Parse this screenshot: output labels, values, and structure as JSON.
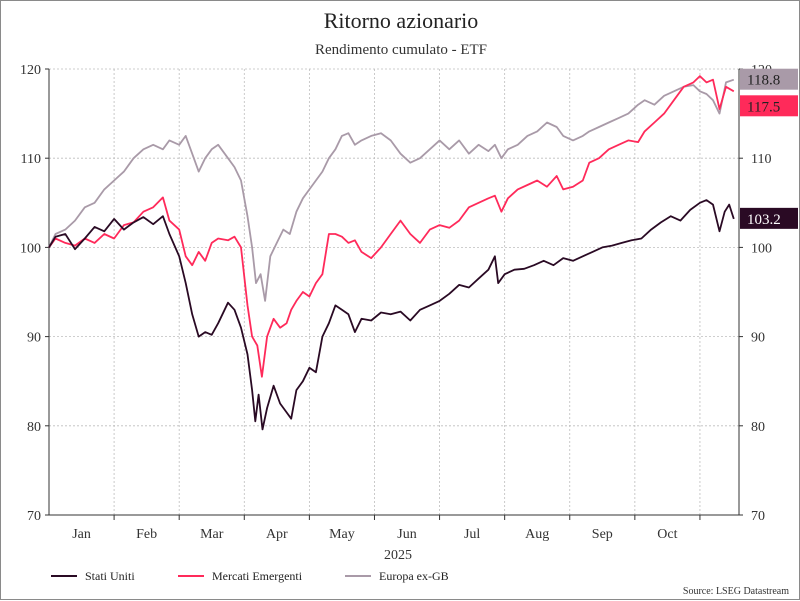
{
  "colors": {
    "stati_uniti": "#2a0a24",
    "mercati_emergenti": "#ff2a5a",
    "europa_ex_gb": "#a99aa8",
    "grid": "#bdbdbd",
    "text": "#222222"
  },
  "chart_data": {
    "type": "line",
    "title": "Ritorno azionario",
    "subtitle": "Rendimento cumulato - ETF",
    "xlabel": "2025",
    "ylabel": "",
    "ylim": [
      70,
      120
    ],
    "yticks": [
      70,
      80,
      90,
      100,
      110,
      120
    ],
    "xlim": [
      0,
      10.6
    ],
    "x_tick_labels": [
      "Jan",
      "Feb",
      "Mar",
      "Apr",
      "May",
      "Jun",
      "Jul",
      "Aug",
      "Sep",
      "Oct"
    ],
    "x_tick_positions": [
      0.5,
      1.5,
      2.5,
      3.5,
      4.5,
      5.5,
      6.5,
      7.5,
      8.5,
      9.5
    ],
    "grid": true,
    "legend_position": "bottom",
    "source": "Source: LSEG Datastream",
    "series": [
      {
        "name": "Stati Uniti",
        "color_key": "stati_uniti",
        "end_label": "103.2",
        "points": [
          [
            0.0,
            100.0
          ],
          [
            0.1,
            101.2
          ],
          [
            0.25,
            101.5
          ],
          [
            0.4,
            99.8
          ],
          [
            0.55,
            101.0
          ],
          [
            0.7,
            102.3
          ],
          [
            0.85,
            101.8
          ],
          [
            1.0,
            103.2
          ],
          [
            1.15,
            102.0
          ],
          [
            1.3,
            102.8
          ],
          [
            1.45,
            103.4
          ],
          [
            1.6,
            102.6
          ],
          [
            1.75,
            103.5
          ],
          [
            1.85,
            101.5
          ],
          [
            2.0,
            99.0
          ],
          [
            2.1,
            96.0
          ],
          [
            2.2,
            92.5
          ],
          [
            2.3,
            90.0
          ],
          [
            2.4,
            90.5
          ],
          [
            2.5,
            90.2
          ],
          [
            2.6,
            91.5
          ],
          [
            2.75,
            93.8
          ],
          [
            2.85,
            93.0
          ],
          [
            2.95,
            91.0
          ],
          [
            3.05,
            88.0
          ],
          [
            3.12,
            84.0
          ],
          [
            3.17,
            80.5
          ],
          [
            3.22,
            83.5
          ],
          [
            3.28,
            79.6
          ],
          [
            3.35,
            82.0
          ],
          [
            3.45,
            84.5
          ],
          [
            3.55,
            82.5
          ],
          [
            3.65,
            81.5
          ],
          [
            3.72,
            80.8
          ],
          [
            3.8,
            84.0
          ],
          [
            3.9,
            85.0
          ],
          [
            4.0,
            86.5
          ],
          [
            4.1,
            86.0
          ],
          [
            4.2,
            90.0
          ],
          [
            4.3,
            91.5
          ],
          [
            4.4,
            93.5
          ],
          [
            4.5,
            93.0
          ],
          [
            4.6,
            92.5
          ],
          [
            4.7,
            90.5
          ],
          [
            4.8,
            92.0
          ],
          [
            4.95,
            91.8
          ],
          [
            5.1,
            92.7
          ],
          [
            5.25,
            92.5
          ],
          [
            5.4,
            92.8
          ],
          [
            5.55,
            91.8
          ],
          [
            5.7,
            93.0
          ],
          [
            5.85,
            93.5
          ],
          [
            6.0,
            94.0
          ],
          [
            6.15,
            94.8
          ],
          [
            6.3,
            95.8
          ],
          [
            6.45,
            95.5
          ],
          [
            6.6,
            96.5
          ],
          [
            6.75,
            97.5
          ],
          [
            6.85,
            99.0
          ],
          [
            6.9,
            96.0
          ],
          [
            7.0,
            97.0
          ],
          [
            7.15,
            97.5
          ],
          [
            7.3,
            97.6
          ],
          [
            7.45,
            98.0
          ],
          [
            7.6,
            98.5
          ],
          [
            7.75,
            98.0
          ],
          [
            7.9,
            98.8
          ],
          [
            8.05,
            98.5
          ],
          [
            8.2,
            99.0
          ],
          [
            8.35,
            99.5
          ],
          [
            8.5,
            100.0
          ],
          [
            8.65,
            100.2
          ],
          [
            8.8,
            100.5
          ],
          [
            8.95,
            100.8
          ],
          [
            9.1,
            101.0
          ],
          [
            9.25,
            102.0
          ],
          [
            9.4,
            102.8
          ],
          [
            9.55,
            103.5
          ],
          [
            9.7,
            103.0
          ],
          [
            9.85,
            104.2
          ],
          [
            10.0,
            105.0
          ],
          [
            10.1,
            105.3
          ],
          [
            10.2,
            104.8
          ],
          [
            10.3,
            101.8
          ],
          [
            10.38,
            104.0
          ],
          [
            10.45,
            104.8
          ],
          [
            10.52,
            103.2
          ]
        ]
      },
      {
        "name": "Mercati Emergenti",
        "color_key": "mercati_emergenti",
        "end_label": "117.5",
        "points": [
          [
            0.0,
            100.0
          ],
          [
            0.1,
            101.0
          ],
          [
            0.25,
            100.5
          ],
          [
            0.4,
            100.2
          ],
          [
            0.55,
            101.0
          ],
          [
            0.7,
            100.5
          ],
          [
            0.85,
            101.5
          ],
          [
            1.0,
            101.0
          ],
          [
            1.15,
            102.5
          ],
          [
            1.3,
            102.8
          ],
          [
            1.45,
            104.0
          ],
          [
            1.6,
            104.5
          ],
          [
            1.75,
            105.6
          ],
          [
            1.85,
            103.0
          ],
          [
            2.0,
            102.0
          ],
          [
            2.1,
            99.0
          ],
          [
            2.2,
            98.0
          ],
          [
            2.3,
            99.5
          ],
          [
            2.4,
            98.5
          ],
          [
            2.5,
            100.5
          ],
          [
            2.6,
            101.0
          ],
          [
            2.75,
            100.8
          ],
          [
            2.85,
            101.2
          ],
          [
            2.95,
            100.0
          ],
          [
            3.05,
            93.5
          ],
          [
            3.12,
            90.0
          ],
          [
            3.2,
            89.0
          ],
          [
            3.27,
            85.5
          ],
          [
            3.35,
            90.0
          ],
          [
            3.45,
            92.0
          ],
          [
            3.55,
            91.0
          ],
          [
            3.65,
            91.5
          ],
          [
            3.72,
            93.0
          ],
          [
            3.8,
            94.0
          ],
          [
            3.9,
            95.0
          ],
          [
            4.0,
            94.5
          ],
          [
            4.1,
            96.0
          ],
          [
            4.2,
            97.0
          ],
          [
            4.3,
            101.5
          ],
          [
            4.4,
            101.5
          ],
          [
            4.5,
            101.2
          ],
          [
            4.6,
            100.5
          ],
          [
            4.7,
            100.8
          ],
          [
            4.8,
            99.5
          ],
          [
            4.95,
            98.8
          ],
          [
            5.1,
            100.0
          ],
          [
            5.25,
            101.5
          ],
          [
            5.4,
            103.0
          ],
          [
            5.55,
            101.5
          ],
          [
            5.7,
            100.5
          ],
          [
            5.85,
            102.0
          ],
          [
            6.0,
            102.5
          ],
          [
            6.15,
            102.2
          ],
          [
            6.3,
            103.0
          ],
          [
            6.45,
            104.5
          ],
          [
            6.6,
            105.0
          ],
          [
            6.75,
            105.5
          ],
          [
            6.85,
            105.8
          ],
          [
            6.95,
            104.0
          ],
          [
            7.05,
            105.5
          ],
          [
            7.2,
            106.5
          ],
          [
            7.35,
            107.0
          ],
          [
            7.5,
            107.5
          ],
          [
            7.65,
            106.8
          ],
          [
            7.8,
            108.0
          ],
          [
            7.9,
            106.5
          ],
          [
            8.05,
            106.8
          ],
          [
            8.2,
            107.5
          ],
          [
            8.3,
            109.5
          ],
          [
            8.45,
            110.0
          ],
          [
            8.6,
            111.0
          ],
          [
            8.75,
            111.5
          ],
          [
            8.9,
            112.0
          ],
          [
            9.05,
            111.8
          ],
          [
            9.15,
            113.0
          ],
          [
            9.3,
            114.0
          ],
          [
            9.45,
            115.0
          ],
          [
            9.6,
            116.5
          ],
          [
            9.75,
            118.0
          ],
          [
            9.9,
            118.5
          ],
          [
            10.0,
            119.2
          ],
          [
            10.1,
            118.5
          ],
          [
            10.2,
            118.8
          ],
          [
            10.3,
            115.5
          ],
          [
            10.4,
            118.0
          ],
          [
            10.52,
            117.5
          ]
        ]
      },
      {
        "name": "Europa ex-GB",
        "color_key": "europa_ex_gb",
        "end_label": "118.8",
        "points": [
          [
            0.0,
            100.0
          ],
          [
            0.1,
            101.5
          ],
          [
            0.25,
            102.0
          ],
          [
            0.4,
            103.0
          ],
          [
            0.55,
            104.5
          ],
          [
            0.7,
            105.0
          ],
          [
            0.85,
            106.5
          ],
          [
            1.0,
            107.5
          ],
          [
            1.15,
            108.5
          ],
          [
            1.3,
            110.0
          ],
          [
            1.45,
            111.0
          ],
          [
            1.6,
            111.5
          ],
          [
            1.75,
            111.0
          ],
          [
            1.85,
            112.0
          ],
          [
            2.0,
            111.5
          ],
          [
            2.1,
            112.5
          ],
          [
            2.2,
            110.5
          ],
          [
            2.3,
            108.5
          ],
          [
            2.4,
            110.0
          ],
          [
            2.5,
            111.0
          ],
          [
            2.6,
            111.5
          ],
          [
            2.75,
            110.0
          ],
          [
            2.85,
            109.0
          ],
          [
            2.95,
            107.5
          ],
          [
            3.05,
            103.5
          ],
          [
            3.12,
            100.0
          ],
          [
            3.18,
            96.0
          ],
          [
            3.25,
            97.0
          ],
          [
            3.32,
            94.0
          ],
          [
            3.4,
            99.0
          ],
          [
            3.5,
            100.5
          ],
          [
            3.6,
            102.0
          ],
          [
            3.7,
            101.5
          ],
          [
            3.8,
            104.0
          ],
          [
            3.9,
            105.5
          ],
          [
            4.0,
            106.5
          ],
          [
            4.1,
            107.5
          ],
          [
            4.2,
            108.5
          ],
          [
            4.3,
            110.0
          ],
          [
            4.4,
            111.0
          ],
          [
            4.5,
            112.5
          ],
          [
            4.6,
            112.8
          ],
          [
            4.7,
            111.5
          ],
          [
            4.8,
            112.0
          ],
          [
            4.95,
            112.5
          ],
          [
            5.1,
            112.8
          ],
          [
            5.25,
            112.0
          ],
          [
            5.4,
            110.5
          ],
          [
            5.55,
            109.5
          ],
          [
            5.7,
            110.0
          ],
          [
            5.85,
            111.0
          ],
          [
            6.0,
            112.0
          ],
          [
            6.15,
            111.0
          ],
          [
            6.3,
            112.0
          ],
          [
            6.45,
            110.5
          ],
          [
            6.6,
            111.5
          ],
          [
            6.75,
            110.8
          ],
          [
            6.85,
            111.5
          ],
          [
            6.95,
            110.0
          ],
          [
            7.05,
            111.0
          ],
          [
            7.2,
            111.5
          ],
          [
            7.35,
            112.5
          ],
          [
            7.5,
            113.0
          ],
          [
            7.65,
            114.0
          ],
          [
            7.8,
            113.5
          ],
          [
            7.9,
            112.5
          ],
          [
            8.05,
            112.0
          ],
          [
            8.2,
            112.5
          ],
          [
            8.3,
            113.0
          ],
          [
            8.45,
            113.5
          ],
          [
            8.6,
            114.0
          ],
          [
            8.75,
            114.5
          ],
          [
            8.9,
            115.0
          ],
          [
            9.05,
            116.0
          ],
          [
            9.15,
            116.5
          ],
          [
            9.3,
            116.0
          ],
          [
            9.45,
            117.0
          ],
          [
            9.6,
            117.5
          ],
          [
            9.75,
            118.0
          ],
          [
            9.9,
            118.2
          ],
          [
            10.0,
            117.5
          ],
          [
            10.1,
            117.2
          ],
          [
            10.2,
            116.5
          ],
          [
            10.3,
            115.0
          ],
          [
            10.4,
            118.5
          ],
          [
            10.52,
            118.8
          ]
        ]
      }
    ]
  }
}
